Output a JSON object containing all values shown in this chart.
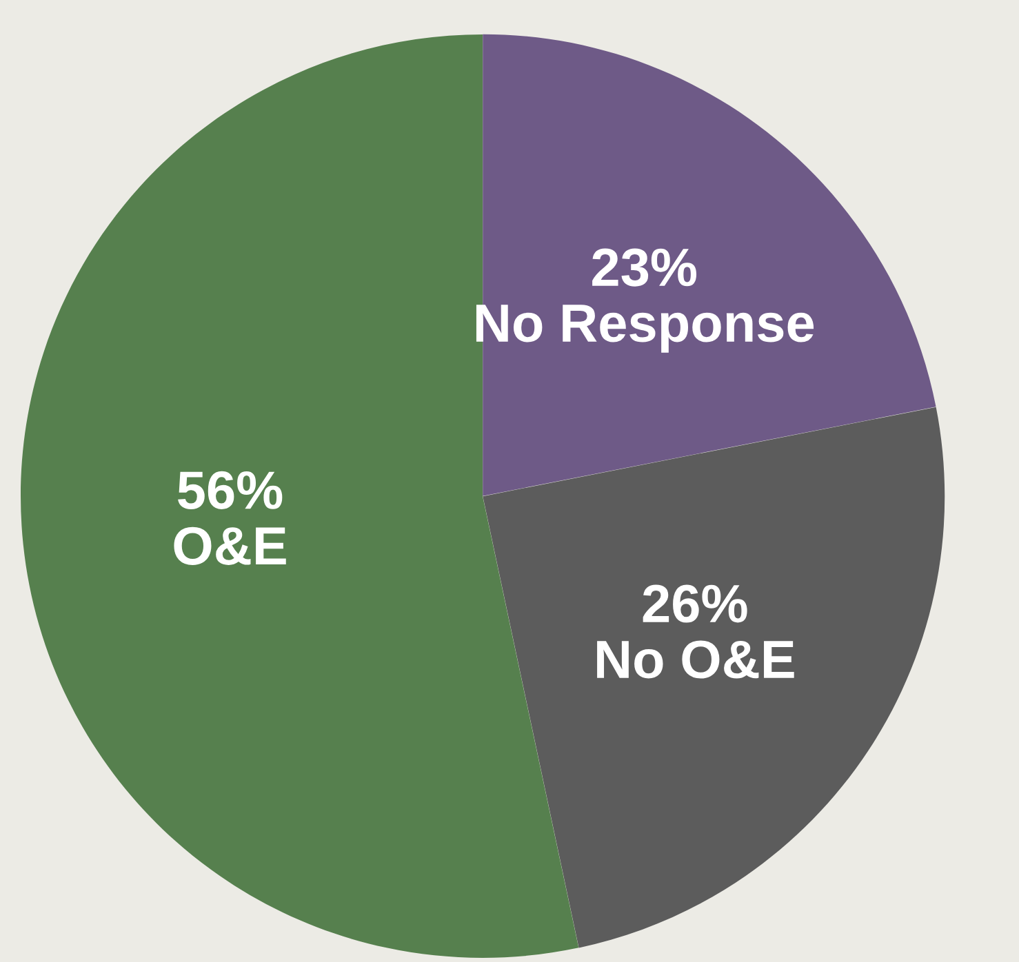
{
  "chart_data": {
    "type": "pie",
    "categories": [
      "No Response",
      "No O&E",
      "O&E"
    ],
    "values": [
      23,
      26,
      56
    ],
    "value_labels": [
      "23%",
      "26%",
      "56%"
    ],
    "colors": [
      "#6e5a87",
      "#5c5c5c",
      "#56804e"
    ],
    "legend": false
  }
}
